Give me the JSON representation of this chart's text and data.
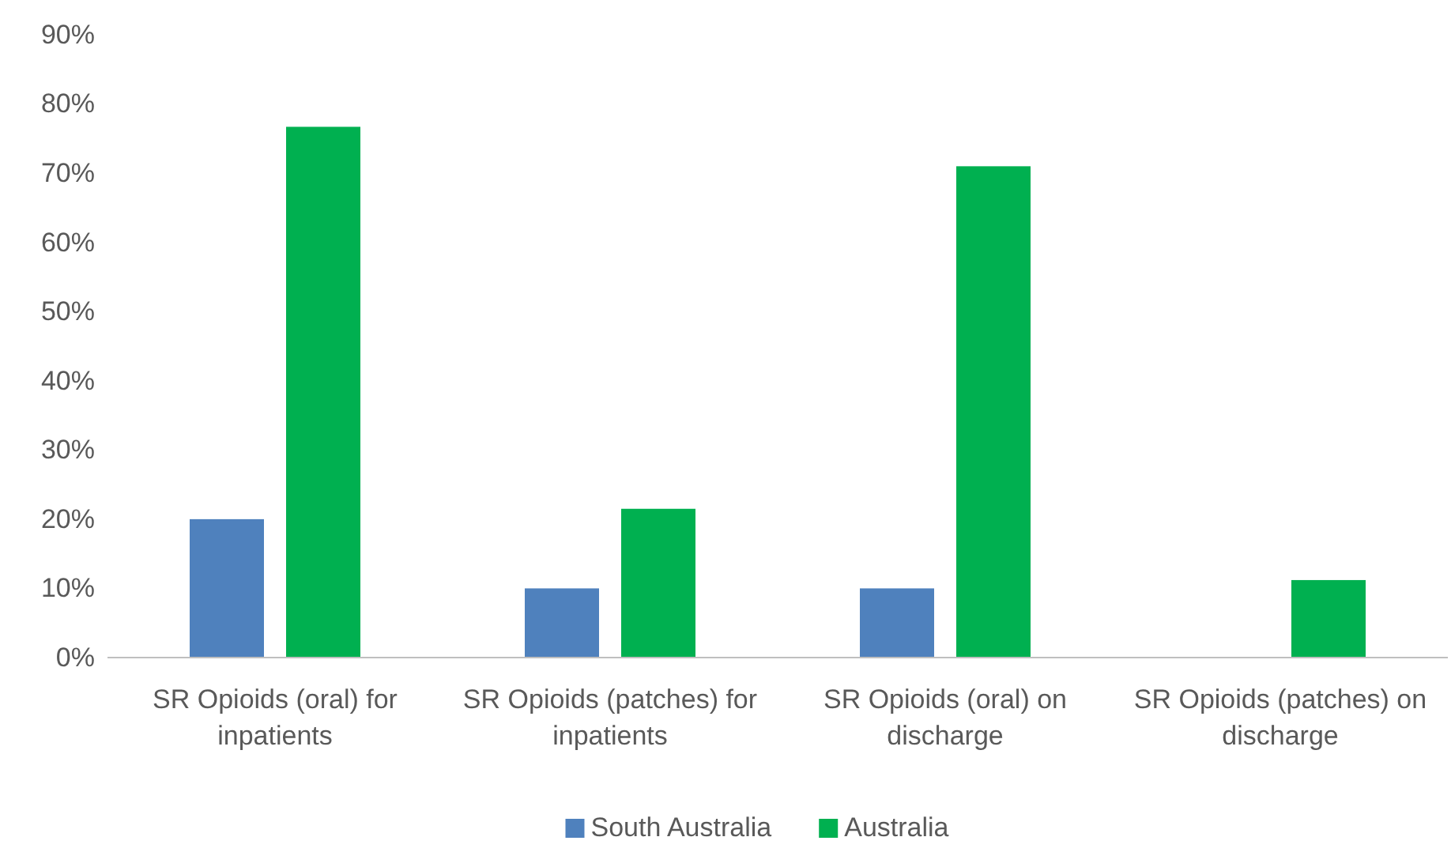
{
  "chart_data": {
    "type": "bar",
    "categories": [
      "SR Opioids (oral) for inpatients",
      "SR Opioids (patches) for inpatients",
      "SR Opioids (oral) on discharge",
      "SR Opioids (patches) on discharge"
    ],
    "series": [
      {
        "name": "South Australia",
        "color": "#4f81bd",
        "values": [
          20,
          10,
          10,
          null
        ]
      },
      {
        "name": "Australia",
        "color": "#00b050",
        "values": [
          76.7,
          21.5,
          71,
          11.2
        ]
      }
    ],
    "ylim": [
      0,
      90
    ],
    "yticks": [
      {
        "value": 0,
        "label": "0%"
      },
      {
        "value": 10,
        "label": "10%"
      },
      {
        "value": 20,
        "label": "20%"
      },
      {
        "value": 30,
        "label": "30%"
      },
      {
        "value": 40,
        "label": "40%"
      },
      {
        "value": 50,
        "label": "50%"
      },
      {
        "value": 60,
        "label": "60%"
      },
      {
        "value": 70,
        "label": "70%"
      },
      {
        "value": 80,
        "label": "80%"
      },
      {
        "value": 90,
        "label": "90%"
      }
    ],
    "grid": false,
    "legend": "bottom"
  }
}
